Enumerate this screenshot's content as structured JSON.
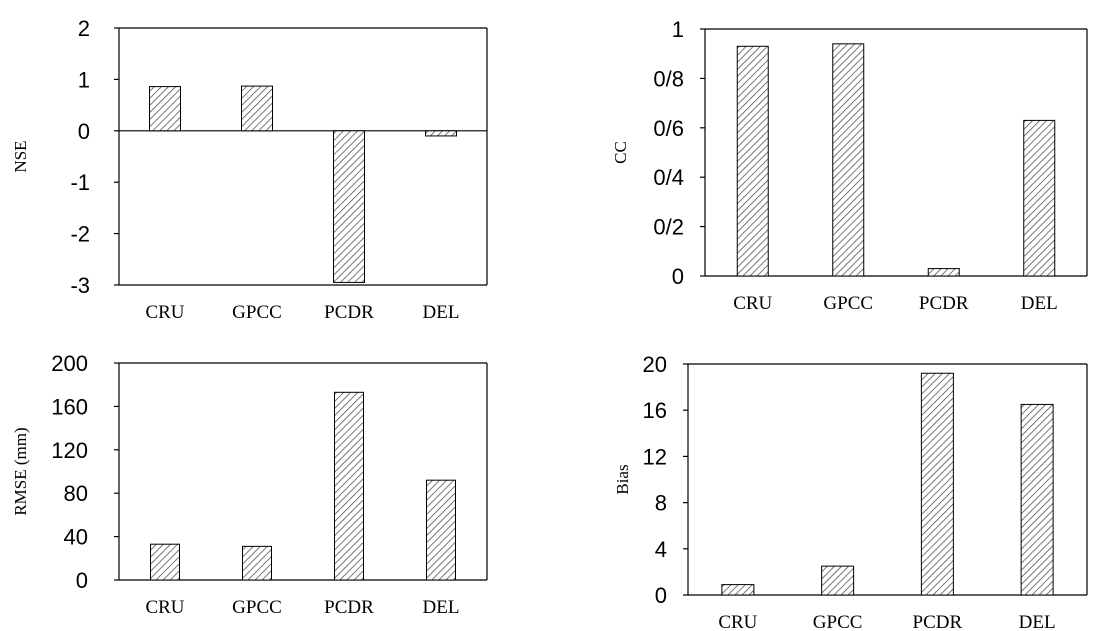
{
  "chart_data": [
    {
      "type": "bar",
      "categories": [
        "CRU",
        "GPCC",
        "PCDR",
        "DEL"
      ],
      "values": [
        0.86,
        0.87,
        -2.95,
        -0.1
      ],
      "ylabel": "NSE",
      "ylim": [
        -3,
        2
      ],
      "yticks": [
        "2",
        "1",
        "0",
        "-1",
        "-2",
        "-3"
      ]
    },
    {
      "type": "bar",
      "categories": [
        "CRU",
        "GPCC",
        "PCDR",
        "DEL"
      ],
      "values": [
        0.93,
        0.94,
        0.03,
        0.63
      ],
      "ylabel": "CC",
      "ylim": [
        0,
        1
      ],
      "yticks": [
        "1",
        "0/8",
        "0/6",
        "0/4",
        "0/2",
        "0"
      ]
    },
    {
      "type": "bar",
      "categories": [
        "CRU",
        "GPCC",
        "PCDR",
        "DEL"
      ],
      "values": [
        33,
        31,
        173,
        92
      ],
      "ylabel": "RMSE (mm)",
      "ylim": [
        0,
        200
      ],
      "yticks": [
        "200",
        "160",
        "120",
        "80",
        "40",
        "0"
      ]
    },
    {
      "type": "bar",
      "categories": [
        "CRU",
        "GPCC",
        "PCDR",
        "DEL"
      ],
      "values": [
        0.9,
        2.5,
        19.2,
        16.5
      ],
      "ylabel": "Bias",
      "ylim": [
        0,
        20
      ],
      "yticks": [
        "20",
        "16",
        "12",
        "8",
        "4",
        "0"
      ]
    }
  ]
}
